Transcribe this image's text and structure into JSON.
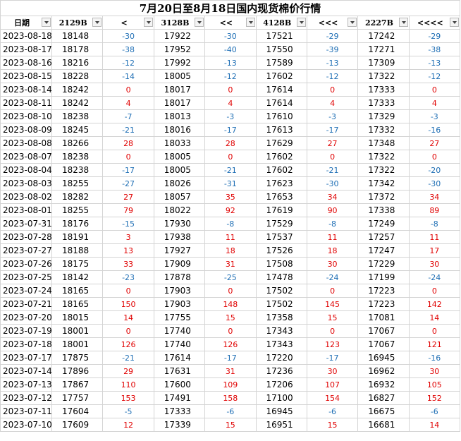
{
  "title": "7月20日至8月18日国内现货棉价行情",
  "table": {
    "columns": [
      "日期",
      "2129B",
      "<",
      "3128B",
      "<<",
      "4128B",
      "<<<",
      "2227B",
      "<<<<"
    ],
    "rows": [
      [
        "2023-08-18",
        18148,
        -30,
        17922,
        -30,
        17521,
        -29,
        17242,
        -29
      ],
      [
        "2023-08-17",
        18178,
        -38,
        17952,
        -40,
        17550,
        -39,
        17271,
        -38
      ],
      [
        "2023-08-16",
        18216,
        -12,
        17992,
        -13,
        17589,
        -13,
        17309,
        -13
      ],
      [
        "2023-08-15",
        18228,
        -14,
        18005,
        -12,
        17602,
        -12,
        17322,
        -12
      ],
      [
        "2023-08-14",
        18242,
        0,
        18017,
        0,
        17614,
        0,
        17333,
        0
      ],
      [
        "2023-08-11",
        18242,
        4,
        18017,
        4,
        17614,
        4,
        17333,
        4
      ],
      [
        "2023-08-10",
        18238,
        -7,
        18013,
        -3,
        17610,
        -3,
        17329,
        -3
      ],
      [
        "2023-08-09",
        18245,
        -21,
        18016,
        -17,
        17613,
        -17,
        17332,
        -16
      ],
      [
        "2023-08-08",
        18266,
        28,
        18033,
        28,
        17629,
        27,
        17348,
        27
      ],
      [
        "2023-08-07",
        18238,
        0,
        18005,
        0,
        17602,
        0,
        17322,
        0
      ],
      [
        "2023-08-04",
        18238,
        -17,
        18005,
        -21,
        17602,
        -21,
        17322,
        -20
      ],
      [
        "2023-08-03",
        18255,
        -27,
        18026,
        -31,
        17623,
        -30,
        17342,
        -30
      ],
      [
        "2023-08-02",
        18282,
        27,
        18057,
        35,
        17653,
        34,
        17372,
        34
      ],
      [
        "2023-08-01",
        18255,
        79,
        18022,
        92,
        17619,
        90,
        17338,
        89
      ],
      [
        "2023-07-31",
        18176,
        -15,
        17930,
        -8,
        17529,
        -8,
        17249,
        -8
      ],
      [
        "2023-07-28",
        18191,
        3,
        17938,
        11,
        17537,
        11,
        17257,
        11
      ],
      [
        "2023-07-27",
        18188,
        13,
        17927,
        18,
        17526,
        18,
        17247,
        17
      ],
      [
        "2023-07-26",
        18175,
        33,
        17909,
        31,
        17508,
        30,
        17229,
        30
      ],
      [
        "2023-07-25",
        18142,
        -23,
        17878,
        -25,
        17478,
        -24,
        17199,
        -24
      ],
      [
        "2023-07-24",
        18165,
        0,
        17903,
        0,
        17502,
        0,
        17223,
        0
      ],
      [
        "2023-07-21",
        18165,
        150,
        17903,
        148,
        17502,
        145,
        17223,
        142
      ],
      [
        "2023-07-20",
        18015,
        14,
        17755,
        15,
        17358,
        15,
        17081,
        14
      ],
      [
        "2023-07-19",
        18001,
        0,
        17740,
        0,
        17343,
        0,
        17067,
        0
      ],
      [
        "2023-07-18",
        18001,
        126,
        17740,
        126,
        17343,
        123,
        17067,
        121
      ],
      [
        "2023-07-17",
        17875,
        -21,
        17614,
        -17,
        17220,
        -17,
        16945,
        -16
      ],
      [
        "2023-07-14",
        17896,
        29,
        17631,
        31,
        17236,
        30,
        16962,
        30
      ],
      [
        "2023-07-13",
        17867,
        110,
        17600,
        109,
        17206,
        107,
        16932,
        105
      ],
      [
        "2023-07-12",
        17757,
        153,
        17491,
        158,
        17100,
        154,
        16827,
        152
      ],
      [
        "2023-07-11",
        17604,
        -5,
        17333,
        -6,
        16945,
        -6,
        16675,
        -6
      ],
      [
        "2023-07-10",
        17609,
        12,
        17339,
        15,
        16951,
        15,
        16681,
        14
      ]
    ]
  }
}
